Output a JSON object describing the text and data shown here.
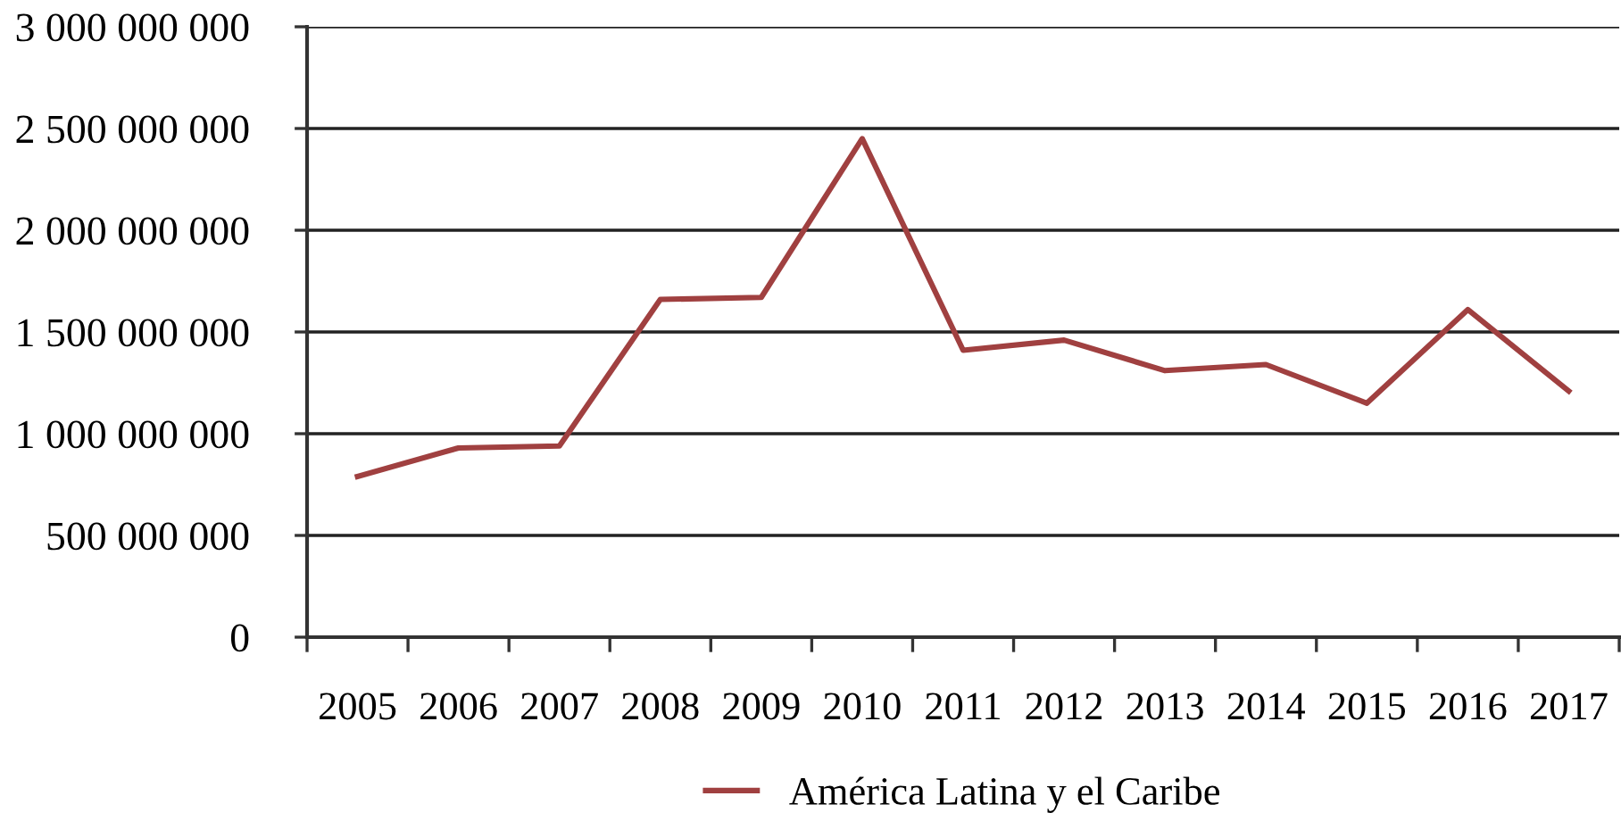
{
  "chart_data": {
    "type": "line",
    "categories": [
      "2005",
      "2006",
      "2007",
      "2008",
      "2009",
      "2010",
      "2011",
      "2012",
      "2013",
      "2014",
      "2015",
      "2016",
      "2017"
    ],
    "series": [
      {
        "name": "América Latina y el Caribe",
        "color": "#a04040",
        "values": [
          790000000,
          930000000,
          940000000,
          1660000000,
          1670000000,
          2450000000,
          1410000000,
          1460000000,
          1310000000,
          1340000000,
          1150000000,
          1610000000,
          1210000000
        ]
      }
    ],
    "ylim": [
      0,
      3000000000
    ],
    "yticks": [
      0,
      {
        "value": 500000000,
        "label": "500 000 000"
      },
      {
        "value": 1000000000,
        "label": "1 000 000 000"
      },
      {
        "value": 1500000000,
        "label": "1 500 000 000"
      },
      {
        "value": 2000000000,
        "label": "2 000 000 000"
      },
      {
        "value": 2500000000,
        "label": "2 500 000 000"
      },
      {
        "value": 3000000000,
        "label": "3 000 000 000"
      }
    ],
    "grid": "y",
    "legend": "bottom",
    "marker": "none",
    "line_style": "solid"
  }
}
